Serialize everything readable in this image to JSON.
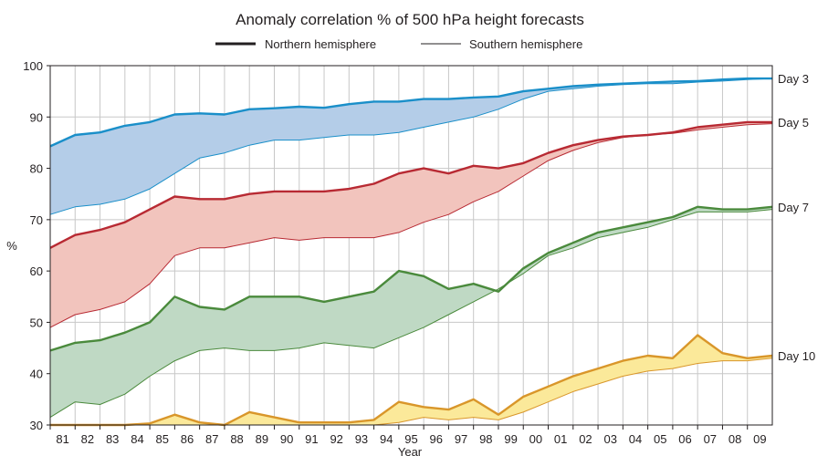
{
  "chart_data": {
    "type": "area",
    "title": "Anomaly correlation % of 500 hPa height forecasts",
    "xlabel": "Year",
    "ylabel": "%",
    "xlim": [
      1981,
      2010
    ],
    "ylim": [
      30,
      100
    ],
    "yticks": [
      30,
      40,
      50,
      60,
      70,
      80,
      90,
      100
    ],
    "xtick_labels": [
      "81",
      "82",
      "83",
      "84",
      "85",
      "86",
      "87",
      "88",
      "89",
      "90",
      "91",
      "92",
      "93",
      "94",
      "95",
      "96",
      "97",
      "98",
      "99",
      "00",
      "01",
      "02",
      "03",
      "04",
      "05",
      "06",
      "07",
      "08",
      "09"
    ],
    "grid": true,
    "legend": {
      "placement": "top-center",
      "entries": [
        {
          "label": "Northern hemisphere",
          "style": "thick line"
        },
        {
          "label": "Southern hemisphere",
          "style": "thin line"
        }
      ]
    },
    "x": [
      1981,
      1982,
      1983,
      1984,
      1985,
      1986,
      1987,
      1988,
      1989,
      1990,
      1991,
      1992,
      1993,
      1994,
      1995,
      1996,
      1997,
      1998,
      1999,
      2000,
      2001,
      2002,
      2003,
      2004,
      2005,
      2006,
      2007,
      2008,
      2009,
      2010
    ],
    "series": [
      {
        "name": "Day 3",
        "color": "#1a8fc9",
        "fill": "#b4cde8",
        "northern": [
          84.3,
          86.5,
          87.0,
          88.3,
          89.0,
          90.5,
          90.7,
          90.5,
          91.5,
          91.7,
          92.0,
          91.8,
          92.5,
          93.0,
          93.0,
          93.5,
          93.5,
          93.8,
          94.0,
          95.0,
          95.5,
          96.0,
          96.3,
          96.5,
          96.7,
          96.9,
          97.0,
          97.3,
          97.5,
          97.5
        ],
        "southern": [
          71.0,
          72.5,
          73.0,
          74.0,
          76.0,
          79.0,
          82.0,
          83.0,
          84.5,
          85.5,
          85.5,
          86.0,
          86.5,
          86.5,
          87.0,
          88.0,
          89.0,
          90.0,
          91.5,
          93.5,
          95.0,
          95.5,
          96.0,
          96.3,
          96.5,
          96.5,
          96.8,
          97.0,
          97.3,
          97.5
        ]
      },
      {
        "name": "Day 5",
        "color": "#b82a33",
        "fill": "#f2c4bd",
        "northern": [
          64.5,
          67.0,
          68.0,
          69.5,
          72.0,
          74.5,
          74.0,
          74.0,
          75.0,
          75.5,
          75.5,
          75.5,
          76.0,
          77.0,
          79.0,
          80.0,
          79.0,
          80.5,
          80.0,
          81.0,
          83.0,
          84.5,
          85.5,
          86.2,
          86.5,
          87.0,
          88.0,
          88.5,
          89.0,
          89.0
        ],
        "southern": [
          49.0,
          51.5,
          52.5,
          54.0,
          57.5,
          63.0,
          64.5,
          64.5,
          65.5,
          66.5,
          66.0,
          66.5,
          66.5,
          66.5,
          67.5,
          69.5,
          71.0,
          73.5,
          75.5,
          78.5,
          81.5,
          83.5,
          85.0,
          86.0,
          86.5,
          86.8,
          87.5,
          88.0,
          88.5,
          88.7
        ]
      },
      {
        "name": "Day 7",
        "color": "#4a8a3c",
        "fill": "#bfd9c4",
        "northern": [
          44.5,
          46.0,
          46.5,
          48.0,
          50.0,
          55.0,
          53.0,
          52.5,
          55.0,
          55.0,
          55.0,
          54.0,
          55.0,
          56.0,
          60.0,
          59.0,
          56.5,
          57.5,
          56.0,
          60.5,
          63.5,
          65.5,
          67.5,
          68.5,
          69.5,
          70.5,
          72.5,
          72.0,
          72.0,
          72.5
        ],
        "southern": [
          31.5,
          34.5,
          34.0,
          36.0,
          39.5,
          42.5,
          44.5,
          45.0,
          44.5,
          44.5,
          45.0,
          46.0,
          45.5,
          45.0,
          47.0,
          49.0,
          51.5,
          54.0,
          56.5,
          59.5,
          63.0,
          64.5,
          66.5,
          67.5,
          68.5,
          70.0,
          71.5,
          71.5,
          71.5,
          72.0
        ]
      },
      {
        "name": "Day 10",
        "color": "#d9962a",
        "fill": "#fbe99a",
        "northern": [
          30.0,
          30.0,
          30.0,
          30.0,
          30.3,
          32.0,
          30.5,
          30.0,
          32.5,
          31.5,
          30.5,
          30.5,
          30.5,
          31.0,
          34.5,
          33.5,
          33.0,
          35.0,
          32.0,
          35.5,
          37.5,
          39.5,
          41.0,
          42.5,
          43.5,
          43.0,
          47.5,
          44.0,
          43.0,
          43.5
        ],
        "southern": [
          30.0,
          30.0,
          30.0,
          30.0,
          30.0,
          30.0,
          30.0,
          30.0,
          30.0,
          30.0,
          30.0,
          30.0,
          30.0,
          30.0,
          30.5,
          31.5,
          31.0,
          31.5,
          31.0,
          32.5,
          34.5,
          36.5,
          38.0,
          39.5,
          40.5,
          41.0,
          42.0,
          42.5,
          42.5,
          43.0
        ]
      }
    ]
  }
}
